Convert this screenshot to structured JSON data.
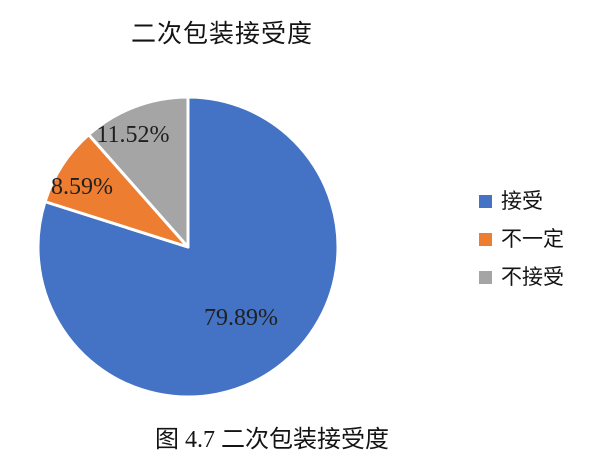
{
  "title": "二次包装接受度",
  "caption": "图 4.7  二次包装接受度",
  "colors": {
    "accept_blue": "#4472C4",
    "maybe_orange": "#ED7D31",
    "reject_gray": "#A5A5A5",
    "label_text": "#1f1f1f",
    "background": "#ffffff",
    "slice_border": "#ffffff"
  },
  "chart_data": {
    "type": "pie",
    "title": "二次包装接受度",
    "start_angle_deg": 0,
    "direction": "clockwise",
    "legend_position": "right",
    "data_labels_visible": true,
    "slices": [
      {
        "label": "接受",
        "value": 79.89,
        "display": "79.89%",
        "color": "#4472C4"
      },
      {
        "label": "不一定",
        "value": 8.59,
        "display": "8.59%",
        "color": "#ED7D31"
      },
      {
        "label": "不接受",
        "value": 11.52,
        "display": "11.52%",
        "color": "#A5A5A5"
      }
    ]
  }
}
